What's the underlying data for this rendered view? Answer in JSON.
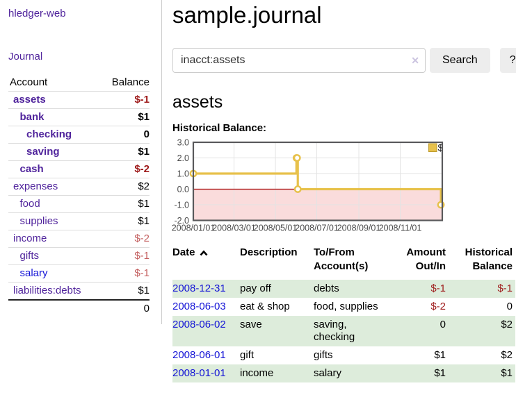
{
  "colors": {
    "purple": "#50249c",
    "blue": "#1414d6",
    "neg_strong": "#9e1a1a",
    "neg_soft": "#c46060",
    "row_green": "#ddecdb",
    "chart_line": "#e7c14b",
    "chart_marker_fill": "#ffffff",
    "chart_negative_fill": "#fadcdc",
    "zero_line": "#a40000",
    "grid": "#e3e3e3",
    "chart_border": "#59595b",
    "tick_text": "#4a4a4a"
  },
  "sidebar": {
    "app_title": "hledger-web",
    "nav_journal": "Journal",
    "accounts_table": {
      "headers": {
        "account": "Account",
        "balance": "Balance"
      },
      "rows": [
        {
          "name": "assets",
          "level": 1,
          "bold": true,
          "balance": "$-1",
          "tone": "neg-strong",
          "color": "purple"
        },
        {
          "name": "bank",
          "level": 2,
          "bold": true,
          "balance": "$1",
          "tone": "normal",
          "color": "purple"
        },
        {
          "name": "checking",
          "level": 3,
          "bold": true,
          "balance": "0",
          "tone": "normal",
          "color": "purple"
        },
        {
          "name": "saving",
          "level": 3,
          "bold": true,
          "balance": "$1",
          "tone": "normal",
          "color": "purple"
        },
        {
          "name": "cash",
          "level": 2,
          "bold": true,
          "balance": "$-2",
          "tone": "neg-strong",
          "color": "purple"
        },
        {
          "name": "expenses",
          "level": 1,
          "bold": false,
          "balance": "$2",
          "tone": "normal",
          "color": "purple"
        },
        {
          "name": "food",
          "level": 2,
          "bold": false,
          "balance": "$1",
          "tone": "normal",
          "color": "purple"
        },
        {
          "name": "supplies",
          "level": 2,
          "bold": false,
          "balance": "$1",
          "tone": "normal",
          "color": "purple"
        },
        {
          "name": "income",
          "level": 1,
          "bold": false,
          "balance": "$-2",
          "tone": "neg-soft",
          "color": "purple"
        },
        {
          "name": "gifts",
          "level": 2,
          "bold": false,
          "balance": "$-1",
          "tone": "neg-soft",
          "color": "purple"
        },
        {
          "name": "salary",
          "level": 2,
          "bold": false,
          "balance": "$-1",
          "tone": "neg-soft",
          "color": "blue"
        },
        {
          "name": "liabilities:debts",
          "level": 1,
          "bold": false,
          "balance": "$1",
          "tone": "normal",
          "color": "purple"
        }
      ],
      "total": "0"
    }
  },
  "main": {
    "title": "sample.journal",
    "search": {
      "value": "inacct:assets",
      "button_label": "Search",
      "help_label": "?"
    },
    "account_heading": "assets",
    "chart_label": "Historical Balance:",
    "register_table": {
      "headers": {
        "date": "Date",
        "description": "Description",
        "accounts": "To/From Account(s)",
        "amount": "Amount Out/In",
        "balance": "Historical Balance"
      },
      "rows": [
        {
          "date": "2008-12-31",
          "description": "pay off",
          "accounts": "debts",
          "amount": "$-1",
          "amount_neg": true,
          "balance": "$-1",
          "balance_neg": true,
          "shaded": true
        },
        {
          "date": "2008-06-03",
          "description": "eat & shop",
          "accounts": "food, supplies",
          "amount": "$-2",
          "amount_neg": true,
          "balance": "0",
          "balance_neg": false,
          "shaded": false
        },
        {
          "date": "2008-06-02",
          "description": "save",
          "accounts": "saving, checking",
          "amount": "0",
          "amount_neg": false,
          "balance": "$2",
          "balance_neg": false,
          "shaded": true
        },
        {
          "date": "2008-06-01",
          "description": "gift",
          "accounts": "gifts",
          "amount": "$1",
          "amount_neg": false,
          "balance": "$2",
          "balance_neg": false,
          "shaded": false
        },
        {
          "date": "2008-01-01",
          "description": "income",
          "accounts": "salary",
          "amount": "$1",
          "amount_neg": false,
          "balance": "$1",
          "balance_neg": false,
          "shaded": true
        }
      ]
    }
  },
  "icons": {
    "clear": "✕",
    "sort": "chevron-up"
  },
  "chart_data": {
    "type": "line",
    "step": true,
    "title": "Historical Balance:",
    "series": [
      {
        "name": "$",
        "points": [
          [
            "2008-01-01",
            1
          ],
          [
            "2008-06-01",
            2
          ],
          [
            "2008-06-02",
            2
          ],
          [
            "2008-06-03",
            0
          ],
          [
            "2008-12-31",
            -1
          ]
        ]
      }
    ],
    "x_start": "2008-01-01",
    "x_span_days": 367,
    "x_ticks": [
      "2008/01/01",
      "2008/03/01",
      "2008/05/01",
      "2008/07/01",
      "2008/09/01",
      "2008/11/01"
    ],
    "y_ticks": [
      3.0,
      2.0,
      1.0,
      0.0,
      -1.0,
      -2.0
    ],
    "ylim": [
      -2,
      3
    ],
    "grid": true,
    "negative_region_shaded": true,
    "legend": {
      "label": "$",
      "position": "top-right"
    }
  }
}
